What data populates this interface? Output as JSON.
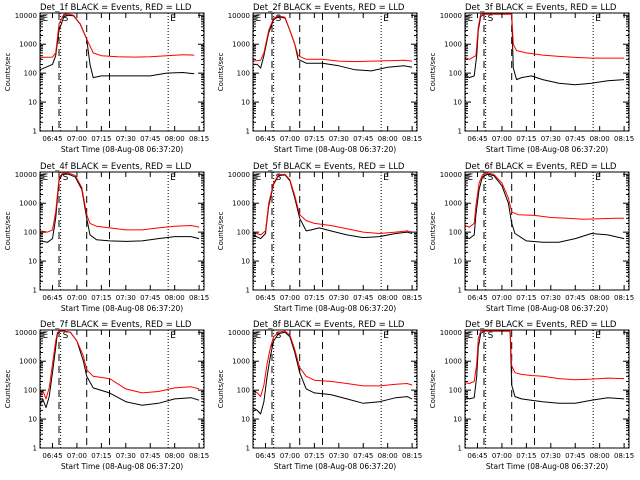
{
  "colors": {
    "events": "#000000",
    "lld": "#ff0000",
    "axes": "#000000",
    "background": "#ffffff"
  },
  "common": {
    "ylabel": "Counts/sec",
    "xlabel": "Start Time (08-Aug-08 06:37:20)",
    "xticks": [
      "06:45",
      "07:00",
      "07:15",
      "07:30",
      "07:45",
      "08:00",
      "08:15"
    ],
    "xlim": [
      "06:37:20",
      "08:18:00"
    ],
    "yticks": [
      "1",
      "10",
      "100",
      "1000",
      "10000"
    ],
    "ylim": [
      1,
      12000
    ],
    "yscale": "log",
    "markers": [
      {
        "label": "E",
        "time": "06:37:40",
        "style": "dotted"
      },
      {
        "label": "",
        "time": "06:49:00",
        "style": "dashed"
      },
      {
        "label": "S",
        "time": "06:50:00",
        "style": "dotted"
      },
      {
        "label": "",
        "time": "07:06:00",
        "style": "dashed"
      },
      {
        "label": "",
        "time": "07:20:00",
        "style": "dashed"
      },
      {
        "label": "E",
        "time": "07:56:00",
        "style": "dotted"
      },
      {
        "label": "",
        "time": "08:17:40",
        "style": "dotted"
      }
    ]
  },
  "chart_data": [
    {
      "type": "line",
      "title": "Det_1f BLACK = Events, RED = LLD",
      "series": [
        {
          "name": "Events",
          "x": [
            "06:37:20",
            "06:45:00",
            "06:47:00",
            "06:49:00",
            "06:52:00",
            "06:55:00",
            "06:58:00",
            "07:02:00",
            "07:06:00",
            "07:08:00",
            "07:10:00",
            "07:15:00",
            "07:25:00",
            "07:35:00",
            "07:45:00",
            "07:55:00",
            "08:05:00",
            "08:12:00"
          ],
          "y": [
            130,
            200,
            400,
            3000,
            9000,
            10000,
            9500,
            5000,
            1500,
            200,
            70,
            80,
            80,
            80,
            80,
            100,
            105,
            95
          ]
        },
        {
          "name": "LLD",
          "x": [
            "06:37:20",
            "06:45:00",
            "06:47:00",
            "06:49:00",
            "06:52:00",
            "06:55:00",
            "06:58:00",
            "07:02:00",
            "07:06:00",
            "07:10:00",
            "07:15:00",
            "07:25:00",
            "07:35:00",
            "07:45:00",
            "07:55:00",
            "08:05:00",
            "08:12:00"
          ],
          "y": [
            350,
            360,
            500,
            5000,
            11000,
            11000,
            10000,
            5000,
            1500,
            500,
            400,
            370,
            360,
            370,
            400,
            430,
            420
          ]
        }
      ]
    },
    {
      "type": "line",
      "title": "Det_2f BLACK = Events, RED = LLD",
      "series": [
        {
          "name": "Events",
          "x": [
            "06:37:20",
            "06:40:00",
            "06:42:00",
            "06:44:00",
            "06:47:00",
            "06:50:00",
            "06:53:00",
            "06:57:00",
            "07:00:00",
            "07:03:00",
            "07:05:00",
            "07:10:00",
            "07:20:00",
            "07:30:00",
            "07:40:00",
            "07:50:00",
            "08:00:00",
            "08:10:00",
            "08:15:00"
          ],
          "y": [
            200,
            200,
            150,
            400,
            2500,
            7000,
            9000,
            8000,
            3000,
            1000,
            300,
            220,
            220,
            180,
            130,
            120,
            160,
            180,
            160
          ]
        },
        {
          "name": "LLD",
          "x": [
            "06:37:20",
            "06:42:00",
            "06:44:00",
            "06:47:00",
            "06:50:00",
            "06:53:00",
            "06:57:00",
            "07:00:00",
            "07:03:00",
            "07:05:00",
            "07:10:00",
            "07:20:00",
            "07:30:00",
            "07:40:00",
            "07:50:00",
            "08:00:00",
            "08:10:00",
            "08:15:00"
          ],
          "y": [
            260,
            280,
            500,
            3000,
            8000,
            9500,
            8500,
            3000,
            1000,
            400,
            300,
            300,
            260,
            250,
            260,
            270,
            280,
            260
          ]
        }
      ]
    },
    {
      "type": "line",
      "title": "Det_3f BLACK = Events, RED = LLD",
      "series": [
        {
          "name": "Events",
          "x": [
            "06:37:20",
            "06:40:00",
            "06:43:00",
            "06:44:30",
            "06:45:30",
            "06:47:00",
            "06:49:00",
            "07:06:00",
            "07:07:00",
            "07:09:00",
            "07:12:00",
            "07:18:00",
            "07:25:00",
            "07:35:00",
            "07:45:00",
            "07:55:00",
            "08:05:00",
            "08:15:00"
          ],
          "y": [
            90,
            70,
            80,
            400,
            3000,
            9000,
            11000,
            11000,
            150,
            60,
            70,
            80,
            60,
            45,
            40,
            45,
            55,
            60
          ]
        },
        {
          "name": "LLD",
          "x": [
            "06:37:20",
            "06:40:00",
            "06:44:00",
            "06:45:30",
            "06:47:00",
            "06:49:00",
            "07:06:00",
            "07:07:00",
            "07:09:00",
            "07:15:00",
            "07:25:00",
            "07:35:00",
            "07:45:00",
            "07:55:00",
            "08:05:00",
            "08:15:00"
          ],
          "y": [
            350,
            300,
            400,
            4000,
            11000,
            11000,
            11000,
            1000,
            600,
            500,
            420,
            380,
            350,
            330,
            330,
            330
          ]
        }
      ]
    },
    {
      "type": "line",
      "title": "Det_4f BLACK = Events, RED = LLD",
      "series": [
        {
          "name": "Events",
          "x": [
            "06:37:20",
            "06:42:00",
            "06:45:00",
            "06:47:00",
            "06:49:00",
            "06:51:00",
            "06:55:00",
            "06:59:00",
            "07:03:00",
            "07:06:00",
            "07:08:00",
            "07:12:00",
            "07:20:00",
            "07:30:00",
            "07:40:00",
            "07:50:00",
            "08:00:00",
            "08:10:00",
            "08:15:00"
          ],
          "y": [
            50,
            45,
            60,
            300,
            6000,
            10000,
            10000,
            8000,
            3000,
            300,
            80,
            55,
            50,
            48,
            50,
            60,
            70,
            70,
            60
          ]
        },
        {
          "name": "LLD",
          "x": [
            "06:37:20",
            "06:42:00",
            "06:45:00",
            "06:47:00",
            "06:49:00",
            "06:51:00",
            "06:55:00",
            "06:59:00",
            "07:03:00",
            "07:06:00",
            "07:08:00",
            "07:12:00",
            "07:20:00",
            "07:30:00",
            "07:40:00",
            "07:50:00",
            "08:00:00",
            "08:10:00",
            "08:15:00"
          ],
          "y": [
            110,
            100,
            120,
            500,
            7000,
            11000,
            11000,
            9000,
            3500,
            400,
            200,
            160,
            140,
            120,
            120,
            140,
            160,
            170,
            150
          ]
        }
      ]
    },
    {
      "type": "line",
      "title": "Det_5f BLACK = Events, RED = LLD",
      "series": [
        {
          "name": "Events",
          "x": [
            "06:37:20",
            "06:42:00",
            "06:45:00",
            "06:47:00",
            "06:50:00",
            "06:53:00",
            "06:57:00",
            "07:00:00",
            "07:03:00",
            "07:06:00",
            "07:10:00",
            "07:13:00",
            "07:18:00",
            "07:25:00",
            "07:35:00",
            "07:45:00",
            "07:55:00",
            "08:05:00",
            "08:12:00",
            "08:15:00"
          ],
          "y": [
            80,
            60,
            90,
            800,
            4500,
            9000,
            9500,
            6000,
            1500,
            300,
            110,
            120,
            140,
            110,
            80,
            65,
            70,
            90,
            100,
            90
          ]
        },
        {
          "name": "LLD",
          "x": [
            "06:37:20",
            "06:42:00",
            "06:45:00",
            "06:47:00",
            "06:50:00",
            "06:53:00",
            "06:57:00",
            "07:00:00",
            "07:03:00",
            "07:06:00",
            "07:10:00",
            "07:15:00",
            "07:25:00",
            "07:35:00",
            "07:45:00",
            "07:55:00",
            "08:05:00",
            "08:12:00",
            "08:15:00"
          ],
          "y": [
            100,
            80,
            110,
            1000,
            5000,
            9500,
            10000,
            6500,
            1800,
            400,
            250,
            200,
            170,
            130,
            100,
            90,
            100,
            110,
            100
          ]
        }
      ]
    },
    {
      "type": "line",
      "title": "Det_6f BLACK = Events, RED = LLD",
      "series": [
        {
          "name": "Events",
          "x": [
            "06:37:20",
            "06:40:00",
            "06:43:00",
            "06:44:00",
            "06:46:00",
            "06:48:00",
            "06:51:00",
            "06:55:00",
            "07:00:00",
            "07:04:00",
            "07:06:00",
            "07:08:00",
            "07:15:00",
            "07:25:00",
            "07:35:00",
            "07:45:00",
            "07:55:00",
            "08:05:00",
            "08:15:00"
          ],
          "y": [
            70,
            60,
            80,
            400,
            3000,
            8000,
            10000,
            9000,
            4000,
            1000,
            200,
            90,
            50,
            45,
            45,
            60,
            90,
            80,
            60
          ]
        },
        {
          "name": "LLD",
          "x": [
            "06:37:20",
            "06:40:00",
            "06:43:00",
            "06:44:00",
            "06:46:00",
            "06:48:00",
            "06:51:00",
            "06:55:00",
            "07:00:00",
            "07:04:00",
            "07:06:00",
            "07:10:00",
            "07:20:00",
            "07:30:00",
            "07:40:00",
            "07:50:00",
            "08:00:00",
            "08:10:00",
            "08:15:00"
          ],
          "y": [
            170,
            150,
            200,
            800,
            5000,
            9500,
            11000,
            10000,
            5000,
            1500,
            500,
            400,
            380,
            320,
            300,
            280,
            290,
            300,
            300
          ]
        }
      ]
    },
    {
      "type": "line",
      "title": "Det_7f BLACK = Events, RED = LLD",
      "series": [
        {
          "name": "Events",
          "x": [
            "06:37:20",
            "06:39:00",
            "06:41:00",
            "06:43:00",
            "06:45:00",
            "06:47:00",
            "06:48:00",
            "06:50:00",
            "06:52:00",
            "06:56:00",
            "07:00:00",
            "07:04:00",
            "07:06:00",
            "07:10:00",
            "07:20:00",
            "07:30:00",
            "07:40:00",
            "07:50:00",
            "08:00:00",
            "08:10:00",
            "08:15:00"
          ],
          "y": [
            30,
            50,
            25,
            60,
            400,
            3000,
            9000,
            11000,
            11000,
            10000,
            5000,
            1000,
            300,
            120,
            80,
            40,
            30,
            35,
            50,
            55,
            45
          ]
        },
        {
          "name": "LLD",
          "x": [
            "06:37:20",
            "06:39:00",
            "06:41:00",
            "06:43:00",
            "06:45:00",
            "06:47:00",
            "06:48:00",
            "06:50:00",
            "06:52:00",
            "06:56:00",
            "07:00:00",
            "07:04:00",
            "07:06:00",
            "07:10:00",
            "07:20:00",
            "07:30:00",
            "07:40:00",
            "07:50:00",
            "08:00:00",
            "08:10:00",
            "08:15:00"
          ],
          "y": [
            60,
            100,
            50,
            120,
            800,
            5000,
            10000,
            11000,
            11000,
            10000,
            5000,
            1500,
            500,
            300,
            250,
            110,
            80,
            90,
            120,
            130,
            110
          ]
        }
      ]
    },
    {
      "type": "line",
      "title": "Det_8f BLACK = Events, RED = LLD",
      "series": [
        {
          "name": "Events",
          "x": [
            "06:37:20",
            "06:40:00",
            "06:42:00",
            "06:44:00",
            "06:46:00",
            "06:48:00",
            "06:50:00",
            "06:53:00",
            "06:57:00",
            "07:00:00",
            "07:03:00",
            "07:06:00",
            "07:10:00",
            "07:15:00",
            "07:25:00",
            "07:35:00",
            "07:45:00",
            "07:55:00",
            "08:05:00",
            "08:12:00",
            "08:15:00"
          ],
          "y": [
            25,
            20,
            15,
            40,
            300,
            1500,
            5000,
            9000,
            10000,
            7000,
            2000,
            400,
            110,
            80,
            70,
            50,
            35,
            40,
            55,
            60,
            50
          ]
        },
        {
          "name": "LLD",
          "x": [
            "06:37:20",
            "06:40:00",
            "06:42:00",
            "06:44:00",
            "06:46:00",
            "06:48:00",
            "06:50:00",
            "06:53:00",
            "06:57:00",
            "07:00:00",
            "07:03:00",
            "07:06:00",
            "07:10:00",
            "07:15:00",
            "07:25:00",
            "07:35:00",
            "07:45:00",
            "07:55:00",
            "08:05:00",
            "08:12:00",
            "08:15:00"
          ],
          "y": [
            100,
            80,
            60,
            150,
            800,
            3000,
            7000,
            10000,
            11000,
            8000,
            2500,
            600,
            300,
            220,
            200,
            170,
            140,
            140,
            160,
            170,
            150
          ]
        }
      ]
    },
    {
      "type": "line",
      "title": "Det_9f BLACK = Events, RED = LLD",
      "series": [
        {
          "name": "Events",
          "x": [
            "06:37:20",
            "06:40:00",
            "06:43:00",
            "06:44:30",
            "06:45:30",
            "06:47:00",
            "06:49:00",
            "07:05:00",
            "07:06:00",
            "07:08:00",
            "07:12:00",
            "07:18:00",
            "07:25:00",
            "07:35:00",
            "07:45:00",
            "07:55:00",
            "08:05:00",
            "08:15:00"
          ],
          "y": [
            60,
            50,
            55,
            300,
            3000,
            9000,
            11000,
            11000,
            150,
            60,
            50,
            45,
            40,
            35,
            35,
            45,
            55,
            50
          ]
        },
        {
          "name": "LLD",
          "x": [
            "06:37:20",
            "06:40:00",
            "06:43:00",
            "06:44:30",
            "06:45:30",
            "06:47:00",
            "06:49:00",
            "07:05:00",
            "07:06:00",
            "07:08:00",
            "07:12:00",
            "07:18:00",
            "07:25:00",
            "07:35:00",
            "07:45:00",
            "07:55:00",
            "08:05:00",
            "08:15:00"
          ],
          "y": [
            180,
            170,
            200,
            800,
            6000,
            11000,
            11000,
            11000,
            700,
            400,
            350,
            320,
            300,
            250,
            230,
            240,
            260,
            250
          ]
        }
      ]
    }
  ]
}
